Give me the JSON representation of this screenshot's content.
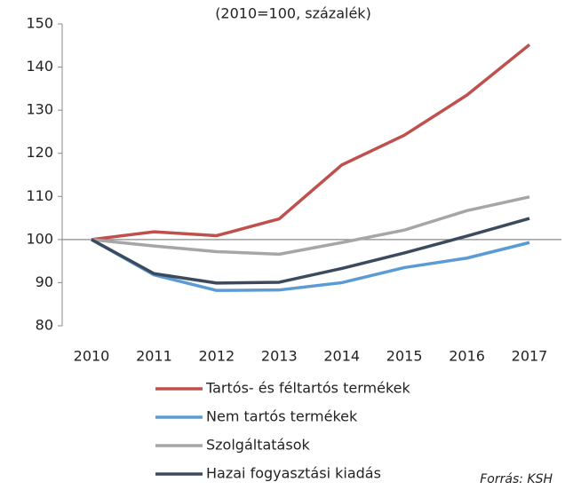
{
  "chart_data": {
    "type": "line",
    "subtitle": "(2010=100, százalék)",
    "categories": [
      "2010",
      "2011",
      "2012",
      "2013",
      "2014",
      "2015",
      "2016",
      "2017"
    ],
    "series": [
      {
        "name": "Tartós- és féltartós termékek",
        "color": "#c0504d",
        "values": [
          100,
          101.8,
          100.9,
          104.8,
          117.3,
          124.2,
          133.5,
          145.2
        ]
      },
      {
        "name": "Nem tartós termékek",
        "color": "#5b9bd5",
        "values": [
          100,
          91.8,
          88.2,
          88.3,
          90.0,
          93.5,
          95.7,
          99.3
        ]
      },
      {
        "name": "Szolgáltatások",
        "color": "#a6a6a6",
        "values": [
          100,
          98.5,
          97.2,
          96.6,
          99.3,
          102.2,
          106.7,
          109.9
        ]
      },
      {
        "name": "Hazai fogyasztási kiadás",
        "color": "#3b4a5c",
        "values": [
          100,
          92.1,
          89.9,
          90.1,
          93.3,
          96.9,
          100.8,
          104.9
        ]
      }
    ],
    "ylim": [
      80,
      150
    ],
    "yticks": [
      80,
      90,
      100,
      110,
      120,
      130,
      140,
      150
    ],
    "baseline": 100,
    "source": "Forrás: KSH"
  }
}
